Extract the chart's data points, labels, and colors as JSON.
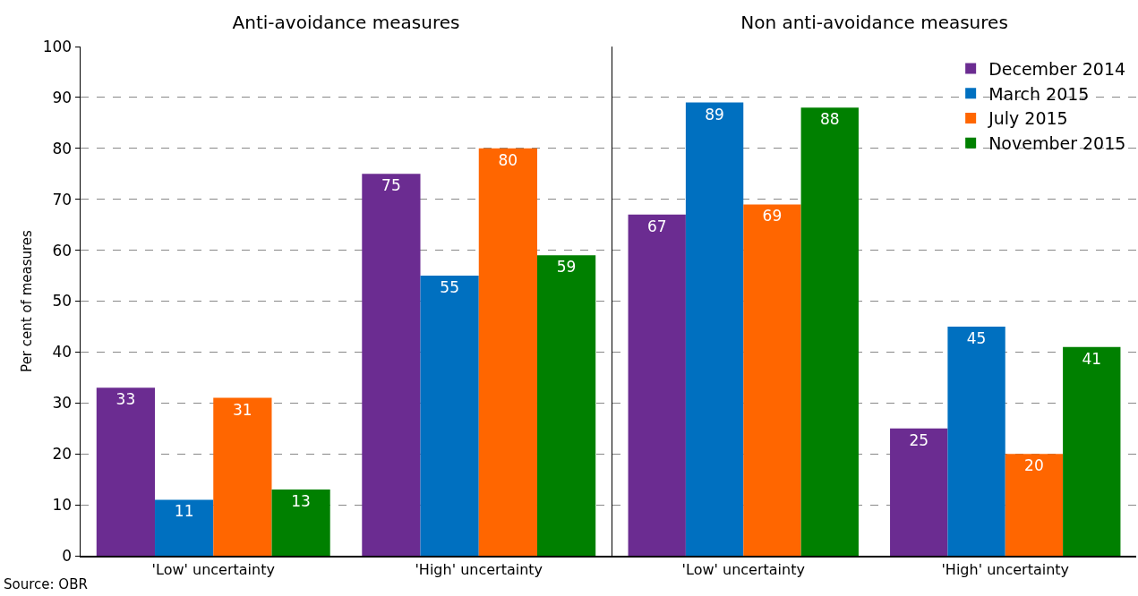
{
  "chart_data": [
    {
      "type": "bar",
      "title": "Anti-avoidance measures",
      "ylabel": "Per cent of measures",
      "categories": [
        "'Low' uncertainty",
        "'High' uncertainty"
      ],
      "series": [
        {
          "color": "#6b2c91",
          "values": [
            33,
            75
          ]
        },
        {
          "color": "#0070c0",
          "values": [
            11,
            55
          ]
        },
        {
          "color": "#ff6600",
          "values": [
            31,
            80
          ]
        },
        {
          "color": "#008000",
          "values": [
            13,
            59
          ]
        }
      ],
      "ylim": [
        0,
        100
      ],
      "yticks": [
        0,
        10,
        20,
        30,
        40,
        50,
        60,
        70,
        80,
        90,
        100
      ],
      "grid": "y",
      "data_labels": true,
      "legend": false,
      "annotations": [
        "Source: OBR"
      ]
    },
    {
      "type": "bar",
      "title": "Non anti-avoidance measures",
      "categories": [
        "'Low' uncertainty",
        "'High' uncertainty"
      ],
      "series": [
        {
          "name": "December 2014",
          "color": "#6b2c91",
          "values": [
            67,
            25
          ]
        },
        {
          "name": "March 2015",
          "color": "#0070c0",
          "values": [
            89,
            45
          ]
        },
        {
          "name": "July 2015",
          "color": "#ff6600",
          "values": [
            69,
            20
          ]
        },
        {
          "name": "November 2015",
          "color": "#008000",
          "values": [
            88,
            41
          ]
        }
      ],
      "ylim": [
        0,
        100
      ],
      "yticks": [
        0,
        10,
        20,
        30,
        40,
        50,
        60,
        70,
        80,
        90,
        100
      ],
      "grid": "y",
      "data_labels": true,
      "legend": "top right",
      "tick_labels": "x"
    }
  ]
}
